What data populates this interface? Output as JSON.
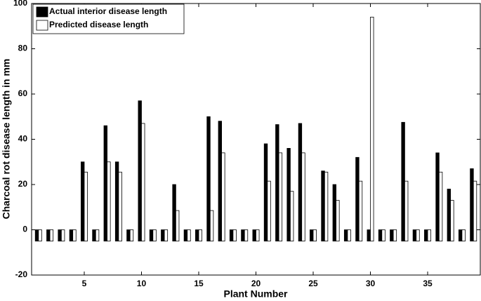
{
  "chart_data": {
    "type": "bar",
    "xlabel": "Plant Number",
    "ylabel": "Charcoal rot disease length in mm",
    "x": [
      1,
      2,
      3,
      4,
      5,
      6,
      7,
      8,
      9,
      10,
      11,
      12,
      13,
      14,
      15,
      16,
      17,
      18,
      19,
      20,
      21,
      22,
      23,
      24,
      25,
      26,
      27,
      28,
      29,
      30,
      31,
      32,
      33,
      34,
      35,
      36,
      37,
      38,
      39
    ],
    "series": [
      {
        "name": "Actual interior disease length",
        "color": "#000000",
        "values": [
          0,
          0,
          0,
          0,
          30,
          0,
          46,
          30,
          0,
          57,
          0,
          0,
          20,
          0,
          0,
          50,
          48,
          0,
          0,
          0,
          38,
          46.5,
          36,
          47,
          0,
          26,
          20,
          0,
          32,
          0,
          0,
          0,
          47.5,
          0,
          0,
          34,
          18,
          0,
          27
        ]
      },
      {
        "name": "Predicted disease length",
        "color": "#ffffff",
        "values": [
          0,
          0,
          0,
          0,
          25.5,
          0,
          30,
          25.5,
          0,
          47,
          0,
          0,
          8.5,
          0,
          0,
          8.5,
          34,
          0,
          0,
          0,
          21.5,
          34,
          17,
          34,
          0,
          25.5,
          13,
          0,
          21.5,
          94,
          0,
          0,
          21.5,
          0,
          0,
          25.5,
          13,
          0,
          21.5
        ]
      }
    ],
    "xlim": [
      0.4,
      39.6
    ],
    "xticks": [
      5,
      10,
      15,
      20,
      25,
      30,
      35
    ],
    "ylim": [
      -20,
      100
    ],
    "yticks": [
      -20,
      0,
      20,
      40,
      60,
      80,
      100
    ],
    "base_value": -5,
    "legend": "upper left",
    "grid": false
  }
}
